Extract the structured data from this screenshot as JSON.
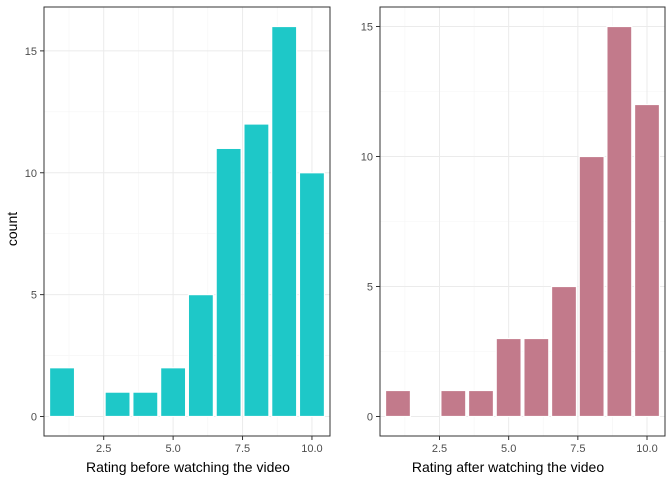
{
  "chart_data": [
    {
      "type": "bar",
      "xlabel": "Rating before watching the video",
      "ylabel": "count",
      "x": [
        1,
        3,
        4,
        5,
        6,
        7,
        8,
        9,
        10
      ],
      "values": [
        2,
        1,
        1,
        2,
        5,
        11,
        12,
        16,
        10
      ],
      "bar_width": 0.9,
      "color": "#1EC8C8",
      "xlim": [
        0.35,
        10.65
      ],
      "ylim": [
        -0.8,
        16.8
      ],
      "xticks": [
        2.5,
        5.0,
        7.5,
        10.0
      ],
      "xtick_labels": [
        "2.5",
        "5.0",
        "7.5",
        "10.0"
      ],
      "yticks": [
        0,
        5,
        10,
        15
      ],
      "ytick_labels": [
        "0",
        "5",
        "10",
        "15"
      ],
      "grid": true
    },
    {
      "type": "bar",
      "xlabel": "Rating after watching the video",
      "ylabel": "",
      "x": [
        1,
        3,
        4,
        5,
        6,
        7,
        8,
        9,
        10
      ],
      "values": [
        1,
        1,
        1,
        3,
        3,
        5,
        10,
        15,
        12
      ],
      "bar_width": 0.9,
      "color": "#C27A8B",
      "xlim": [
        0.35,
        10.65
      ],
      "ylim": [
        -0.75,
        15.75
      ],
      "xticks": [
        2.5,
        5.0,
        7.5,
        10.0
      ],
      "xtick_labels": [
        "2.5",
        "5.0",
        "7.5",
        "10.0"
      ],
      "yticks": [
        0,
        5,
        10,
        15
      ],
      "ytick_labels": [
        "0",
        "5",
        "10",
        "15"
      ],
      "grid": true
    }
  ]
}
